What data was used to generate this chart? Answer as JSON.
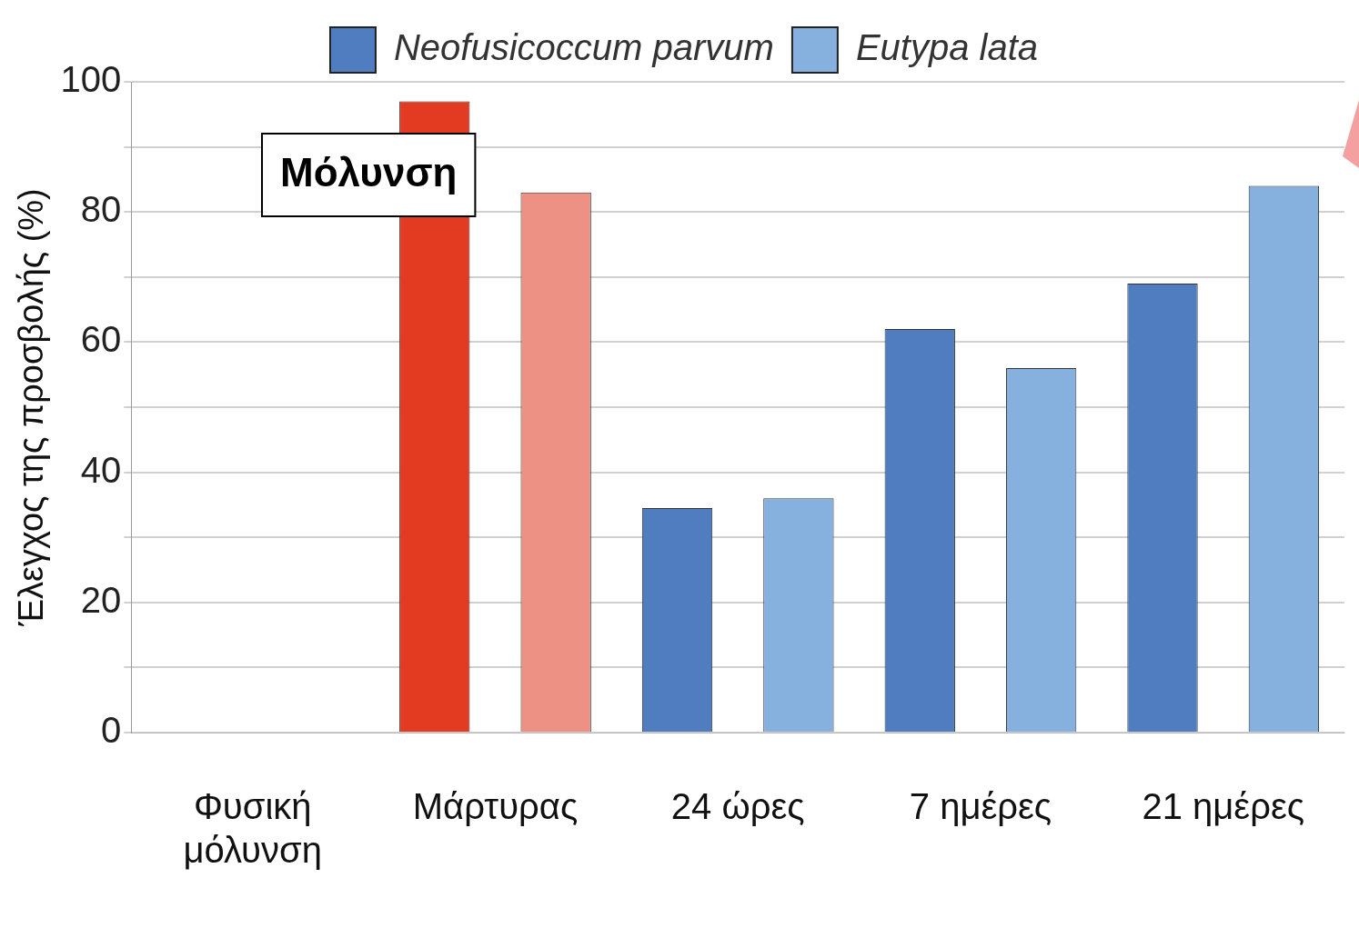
{
  "chart_data": {
    "type": "bar",
    "ylabel": "Έλεγχος της προσβολής (%)",
    "categories": [
      "Φυσική μόλυνση",
      "Μάρτυρας",
      "24 ώρες",
      "7 ημέρες",
      "21 ημέρες"
    ],
    "series": [
      {
        "name": "Neofusicoccum parvum",
        "color": "#4f7dbf",
        "colors": [
          "#4f7dbf",
          "#e33a22",
          "#4f7dbf",
          "#4f7dbf",
          "#4f7dbf"
        ],
        "values": [
          null,
          97,
          34.5,
          62,
          69
        ]
      },
      {
        "name": "Eutypa lata",
        "color": "#86b0de",
        "colors": [
          "#86b0de",
          "#ee9185",
          "#86b0de",
          "#86b0de",
          "#86b0de"
        ],
        "values": [
          null,
          83,
          36,
          56,
          84
        ]
      }
    ],
    "ylim": [
      0,
      100
    ],
    "yticks": [
      0,
      {
        "value": 10,
        "label": null
      },
      20,
      {
        "value": 30,
        "label": null
      },
      40,
      {
        "value": 50,
        "label": null
      },
      60,
      {
        "value": 70,
        "label": null
      },
      80,
      {
        "value": 90,
        "label": null
      },
      100
    ],
    "grid": "y",
    "legend": "top right",
    "annotations": [
      "Μόλυνση"
    ]
  }
}
